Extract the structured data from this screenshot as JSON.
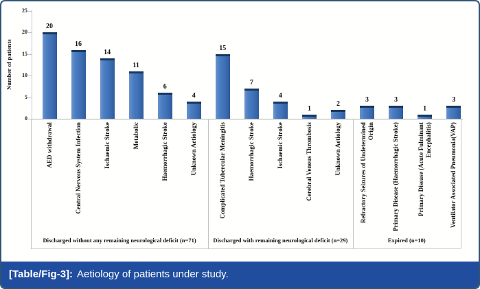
{
  "figure": {
    "caption": {
      "tag": "[Table/Fig-3]:",
      "text": "Aetiology of patients under study."
    }
  },
  "chart_data": {
    "type": "bar",
    "title": "",
    "xlabel": "",
    "ylabel": "Number of patients",
    "ylim": [
      0,
      25
    ],
    "yticks": [
      0,
      5,
      10,
      15,
      20,
      25
    ],
    "grid": false,
    "legend": null,
    "groups": [
      {
        "label": "Discharged without any remaining neurological deficit (n=71)",
        "categories": [
          "AED withdrawal",
          "Central Nervous System Infection",
          "Ischaemic Stroke",
          "Metabolic",
          "Haemorrhagic Stroke",
          "Unknown Aetiology"
        ],
        "values": [
          20,
          16,
          14,
          11,
          6,
          4
        ]
      },
      {
        "label": "Discharged with remaining neurological deficit (n=29)",
        "categories": [
          "Complicated Tubercular Meningitis",
          "Haemorrhagic Stroke",
          "Ischaemic Stroke",
          "Cerebral Venous Thrombosis",
          "Unknown Aetiology"
        ],
        "values": [
          15,
          7,
          4,
          1,
          2
        ]
      },
      {
        "label": "Expired (n=10)",
        "categories": [
          "Refractory Seizures of Undetermined Origin",
          "Primary Disease (Haemorrhagic Stroke)",
          "Primary Disease (Acute Fulminant Encephalitis)",
          "Ventilator Associated Pneumonia(VAP)"
        ],
        "values": [
          3,
          3,
          1,
          3
        ]
      }
    ]
  },
  "colors": {
    "bar_fill": "#3e6fb4",
    "bar_cap": "#17375e",
    "caption_bg": "#204d9e",
    "figure_border": "#2f5577",
    "axis_line": "#ababab"
  }
}
